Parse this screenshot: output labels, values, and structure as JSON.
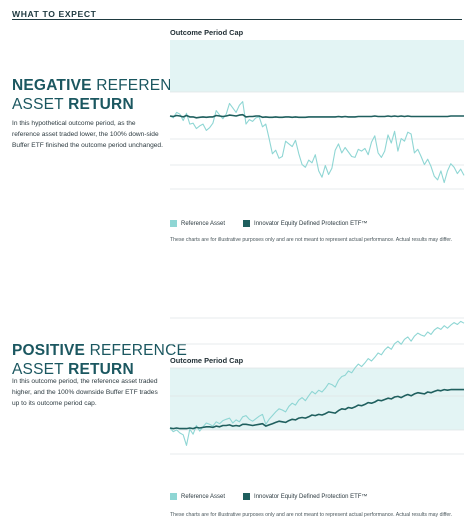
{
  "header": {
    "title": "WHAT TO EXPECT"
  },
  "negative": {
    "headline_bold1": "NEGATIVE",
    "headline_rest1": " REFERENCE",
    "headline_rest2": "ASSET ",
    "headline_bold2": "RETURN",
    "description": "In this hypothetical outcome period, as the reference asset traded lower, the 100% down-side Buffer ETF finished the outcome period unchanged.",
    "cap_label": "Outcome Period Cap",
    "legend": [
      "Reference Asset",
      "Innovator Equity Defined Protection ETF™"
    ],
    "disclaimer": "These charts are for illustrative purposes only and are not meant to represent actual performance. Actual results may differ."
  },
  "positive": {
    "headline_bold1": "POSITIVE",
    "headline_rest1": " REFERENCE",
    "headline_rest2": "ASSET ",
    "headline_bold2": "RETURN",
    "description": "In this outcome period, the reference asset traded higher, and the 100% downside Buffer ETF trades up to its outcome period cap.",
    "cap_label": "Outcome Period Cap",
    "legend": [
      "Reference Asset",
      "Innovator Equity Defined Protection ETF™"
    ],
    "disclaimer": "These charts are for illustrative purposes only and are not meant to represent actual performance. Actual results may differ."
  },
  "colors": {
    "reference": "#8fd6d4",
    "etf": "#1f5f5e",
    "cap_band": "#e3f4f4",
    "grid": "#dfe5e6"
  },
  "chart_data": [
    {
      "type": "line",
      "title": "",
      "xlabel": "",
      "ylabel": "",
      "grid": true,
      "series": [
        {
          "name": "Reference Asset",
          "values": [
            0,
            -2,
            4,
            2,
            -5,
            3,
            -9,
            -8,
            -14,
            -11,
            -9,
            -16,
            -13,
            -8,
            6,
            1,
            -3,
            2,
            14,
            9,
            4,
            12,
            16,
            -9,
            -4,
            -6,
            -2,
            -1,
            -12,
            -9,
            -25,
            -42,
            -38,
            -47,
            -45,
            -28,
            -31,
            -34,
            -27,
            -42,
            -54,
            -57,
            -49,
            -52,
            -43,
            -61,
            -68,
            -55,
            -65,
            -58,
            -38,
            -31,
            -41,
            -35,
            -40,
            -45,
            -46,
            -37,
            -39,
            -36,
            -43,
            -29,
            -22,
            -41,
            -46,
            -39,
            -21,
            -30,
            -17,
            -39,
            -25,
            -28,
            -18,
            -20,
            -41,
            -37,
            -45,
            -54,
            -48,
            -56,
            -67,
            -71,
            -61,
            -74,
            -61,
            -53,
            -57,
            -64,
            -59,
            -66
          ]
        },
        {
          "name": "Innovator Equity Defined Protection ETF™",
          "values": [
            0,
            -0.5,
            0.5,
            0,
            -1,
            0.5,
            -1,
            -1,
            -2,
            -1.5,
            -1,
            -1.5,
            -1,
            -1,
            0.5,
            0,
            -0.5,
            0,
            1,
            0.5,
            0,
            1,
            1.5,
            -1,
            -0.5,
            -0.5,
            0,
            0,
            -1.5,
            -1,
            -1.5,
            -1.5,
            -1,
            -1.5,
            -1.5,
            -1,
            -1,
            -1.5,
            -1,
            -1.5,
            -1.5,
            -1.5,
            -1,
            -1,
            -1,
            -1,
            -1,
            -1,
            -1,
            -1,
            -1,
            -0.5,
            -1,
            -0.5,
            -1,
            -1,
            -1,
            -0.5,
            -0.5,
            -0.5,
            -0.5,
            -0.5,
            0,
            -0.5,
            -0.5,
            -0.5,
            0,
            -0.5,
            0,
            -0.5,
            0,
            -0.5,
            0,
            -0.5,
            -0.5,
            -0.5,
            -0.5,
            -0.5,
            -0.5,
            -0.5,
            -0.5,
            -0.5,
            -0.5,
            -0.5,
            -0.5,
            0,
            0,
            0,
            0,
            0
          ]
        }
      ]
    },
    {
      "type": "line",
      "title": "",
      "xlabel": "",
      "ylabel": "",
      "grid": true,
      "series": [
        {
          "name": "Reference Asset",
          "values": [
            0,
            -6,
            -3,
            -8,
            -11,
            -28,
            -2,
            -10,
            4,
            -5,
            2,
            8,
            6,
            3,
            10,
            7,
            12,
            14,
            16,
            8,
            13,
            10,
            18,
            20,
            14,
            11,
            15,
            19,
            22,
            6,
            14,
            20,
            26,
            31,
            29,
            26,
            35,
            40,
            37,
            45,
            49,
            44,
            52,
            59,
            55,
            61,
            58,
            64,
            72,
            70,
            66,
            77,
            83,
            85,
            92,
            89,
            97,
            103,
            99,
            105,
            112,
            108,
            114,
            121,
            118,
            126,
            131,
            127,
            136,
            140,
            135,
            143,
            147,
            140,
            148,
            153,
            150,
            148,
            155,
            151,
            158,
            162,
            159,
            165,
            161,
            166,
            170,
            167,
            172,
            169
          ]
        },
        {
          "name": "Innovator Equity Defined Protection ETF™",
          "values": [
            0,
            -1,
            0,
            -1,
            -1,
            -1,
            0,
            -1,
            1,
            0,
            1,
            2,
            2,
            1,
            3,
            2,
            4,
            4,
            5,
            3,
            4,
            3,
            6,
            6,
            5,
            4,
            5,
            6,
            7,
            3,
            5,
            7,
            9,
            11,
            10,
            9,
            12,
            14,
            13,
            16,
            17,
            16,
            18,
            21,
            20,
            22,
            21,
            23,
            26,
            25,
            24,
            28,
            31,
            30,
            33,
            32,
            34,
            37,
            36,
            38,
            41,
            40,
            42,
            45,
            44,
            46,
            48,
            47,
            50,
            51,
            49,
            52,
            54,
            52,
            55,
            57,
            56,
            55,
            58,
            57,
            59,
            61,
            60,
            62,
            61,
            62,
            62,
            62,
            62,
            62
          ]
        }
      ]
    }
  ]
}
